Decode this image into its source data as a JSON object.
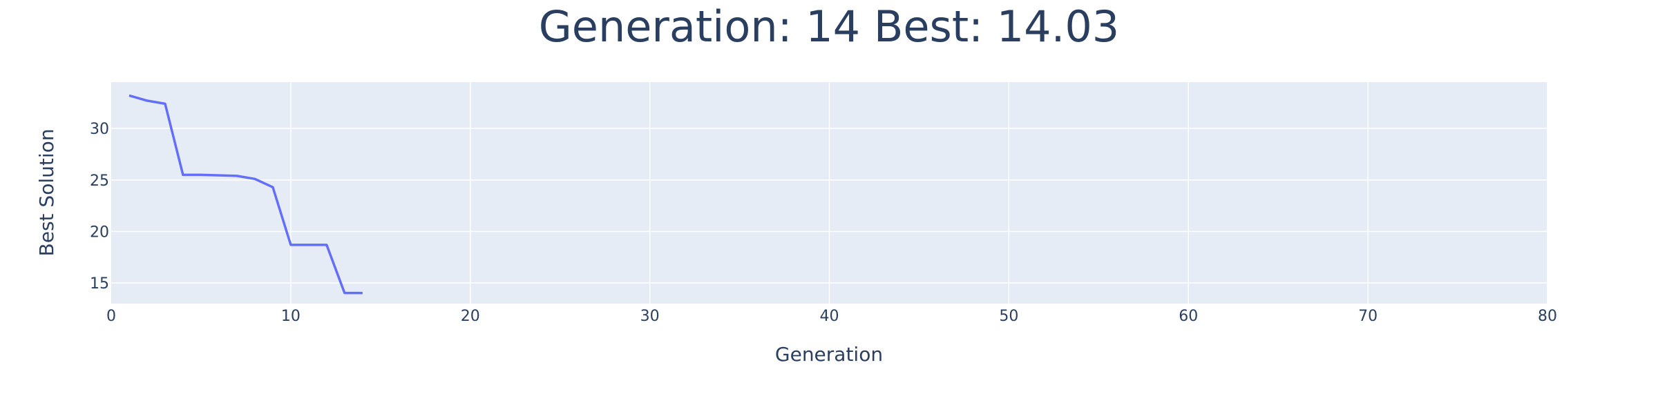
{
  "chart_data": {
    "type": "line",
    "title": "Generation: 14 Best: 14.03",
    "xlabel": "Generation",
    "ylabel": "Best Solution",
    "xlim": [
      0,
      80
    ],
    "ylim": [
      13,
      34.5
    ],
    "xticks": [
      "0",
      "10",
      "20",
      "30",
      "40",
      "50",
      "60",
      "70",
      "80"
    ],
    "yticks": [
      "15",
      "20",
      "25",
      "30"
    ],
    "grid": true,
    "plot_background": "#e5ecf6",
    "grid_color": "#ffffff",
    "line_color": "#636efa",
    "series": [
      {
        "x": [
          1,
          2,
          3,
          4,
          5,
          6,
          7,
          8,
          9,
          10,
          11,
          12,
          13,
          14
        ],
        "y": [
          33.2,
          32.7,
          32.4,
          25.5,
          25.5,
          25.45,
          25.4,
          25.1,
          24.3,
          18.7,
          18.7,
          18.7,
          14.03,
          14.03
        ]
      }
    ]
  }
}
